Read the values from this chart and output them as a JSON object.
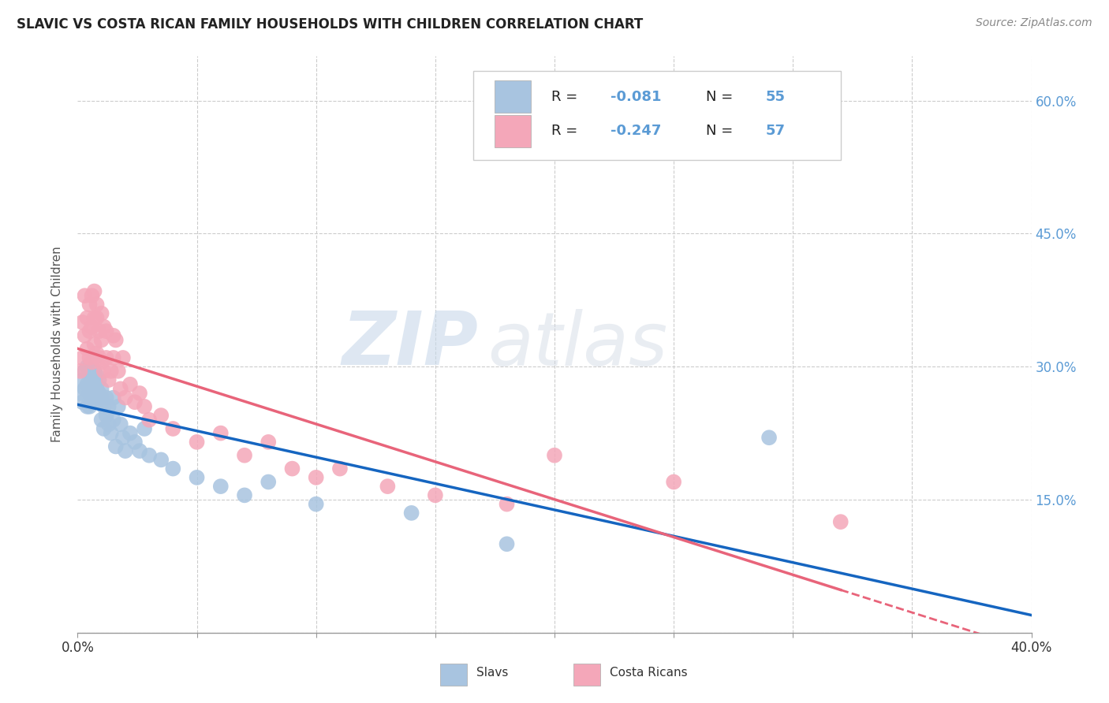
{
  "title": "SLAVIC VS COSTA RICAN FAMILY HOUSEHOLDS WITH CHILDREN CORRELATION CHART",
  "source": "Source: ZipAtlas.com",
  "ylabel": "Family Households with Children",
  "xlim": [
    0.0,
    0.4
  ],
  "ylim": [
    0.0,
    0.65
  ],
  "x_ticks": [
    0.0,
    0.05,
    0.1,
    0.15,
    0.2,
    0.25,
    0.3,
    0.35,
    0.4
  ],
  "y_ticks": [
    0.0,
    0.15,
    0.3,
    0.45,
    0.6
  ],
  "y_tick_labels": [
    "",
    "15.0%",
    "30.0%",
    "45.0%",
    "60.0%"
  ],
  "slavs_color": "#a8c4e0",
  "costa_ricans_color": "#f4a7b9",
  "slavs_R": -0.081,
  "slavs_N": 55,
  "costa_ricans_R": -0.247,
  "costa_ricans_N": 57,
  "trend_slavs_color": "#1565c0",
  "trend_costa_ricans_color": "#e8647a",
  "legend_label_slavs": "Slavs",
  "legend_label_costa_ricans": "Costa Ricans",
  "watermark_zip": "ZIP",
  "watermark_atlas": "atlas",
  "slavs_x": [
    0.001,
    0.002,
    0.002,
    0.003,
    0.003,
    0.004,
    0.004,
    0.004,
    0.005,
    0.005,
    0.005,
    0.006,
    0.006,
    0.006,
    0.007,
    0.007,
    0.007,
    0.007,
    0.008,
    0.008,
    0.008,
    0.009,
    0.009,
    0.01,
    0.01,
    0.01,
    0.011,
    0.011,
    0.012,
    0.012,
    0.013,
    0.013,
    0.014,
    0.015,
    0.015,
    0.016,
    0.017,
    0.018,
    0.019,
    0.02,
    0.022,
    0.024,
    0.026,
    0.028,
    0.03,
    0.035,
    0.04,
    0.05,
    0.06,
    0.07,
    0.08,
    0.1,
    0.14,
    0.18,
    0.29
  ],
  "slavs_y": [
    0.27,
    0.285,
    0.26,
    0.275,
    0.295,
    0.28,
    0.255,
    0.3,
    0.27,
    0.29,
    0.255,
    0.275,
    0.29,
    0.26,
    0.31,
    0.285,
    0.295,
    0.265,
    0.275,
    0.29,
    0.26,
    0.27,
    0.285,
    0.265,
    0.24,
    0.275,
    0.255,
    0.23,
    0.265,
    0.245,
    0.255,
    0.235,
    0.225,
    0.265,
    0.24,
    0.21,
    0.255,
    0.235,
    0.22,
    0.205,
    0.225,
    0.215,
    0.205,
    0.23,
    0.2,
    0.195,
    0.185,
    0.175,
    0.165,
    0.155,
    0.17,
    0.145,
    0.135,
    0.1,
    0.22
  ],
  "costa_ricans_x": [
    0.001,
    0.002,
    0.002,
    0.003,
    0.003,
    0.004,
    0.004,
    0.005,
    0.005,
    0.005,
    0.006,
    0.006,
    0.006,
    0.007,
    0.007,
    0.007,
    0.008,
    0.008,
    0.008,
    0.009,
    0.009,
    0.01,
    0.01,
    0.01,
    0.011,
    0.011,
    0.012,
    0.012,
    0.013,
    0.014,
    0.015,
    0.015,
    0.016,
    0.017,
    0.018,
    0.019,
    0.02,
    0.022,
    0.024,
    0.026,
    0.028,
    0.03,
    0.035,
    0.04,
    0.05,
    0.06,
    0.07,
    0.08,
    0.09,
    0.1,
    0.11,
    0.13,
    0.15,
    0.18,
    0.2,
    0.25,
    0.32
  ],
  "costa_ricans_y": [
    0.295,
    0.31,
    0.35,
    0.335,
    0.38,
    0.355,
    0.32,
    0.37,
    0.34,
    0.31,
    0.38,
    0.345,
    0.305,
    0.355,
    0.385,
    0.325,
    0.355,
    0.315,
    0.37,
    0.34,
    0.31,
    0.36,
    0.33,
    0.305,
    0.345,
    0.295,
    0.34,
    0.31,
    0.285,
    0.295,
    0.335,
    0.31,
    0.33,
    0.295,
    0.275,
    0.31,
    0.265,
    0.28,
    0.26,
    0.27,
    0.255,
    0.24,
    0.245,
    0.23,
    0.215,
    0.225,
    0.2,
    0.215,
    0.185,
    0.175,
    0.185,
    0.165,
    0.155,
    0.145,
    0.2,
    0.17,
    0.125
  ]
}
